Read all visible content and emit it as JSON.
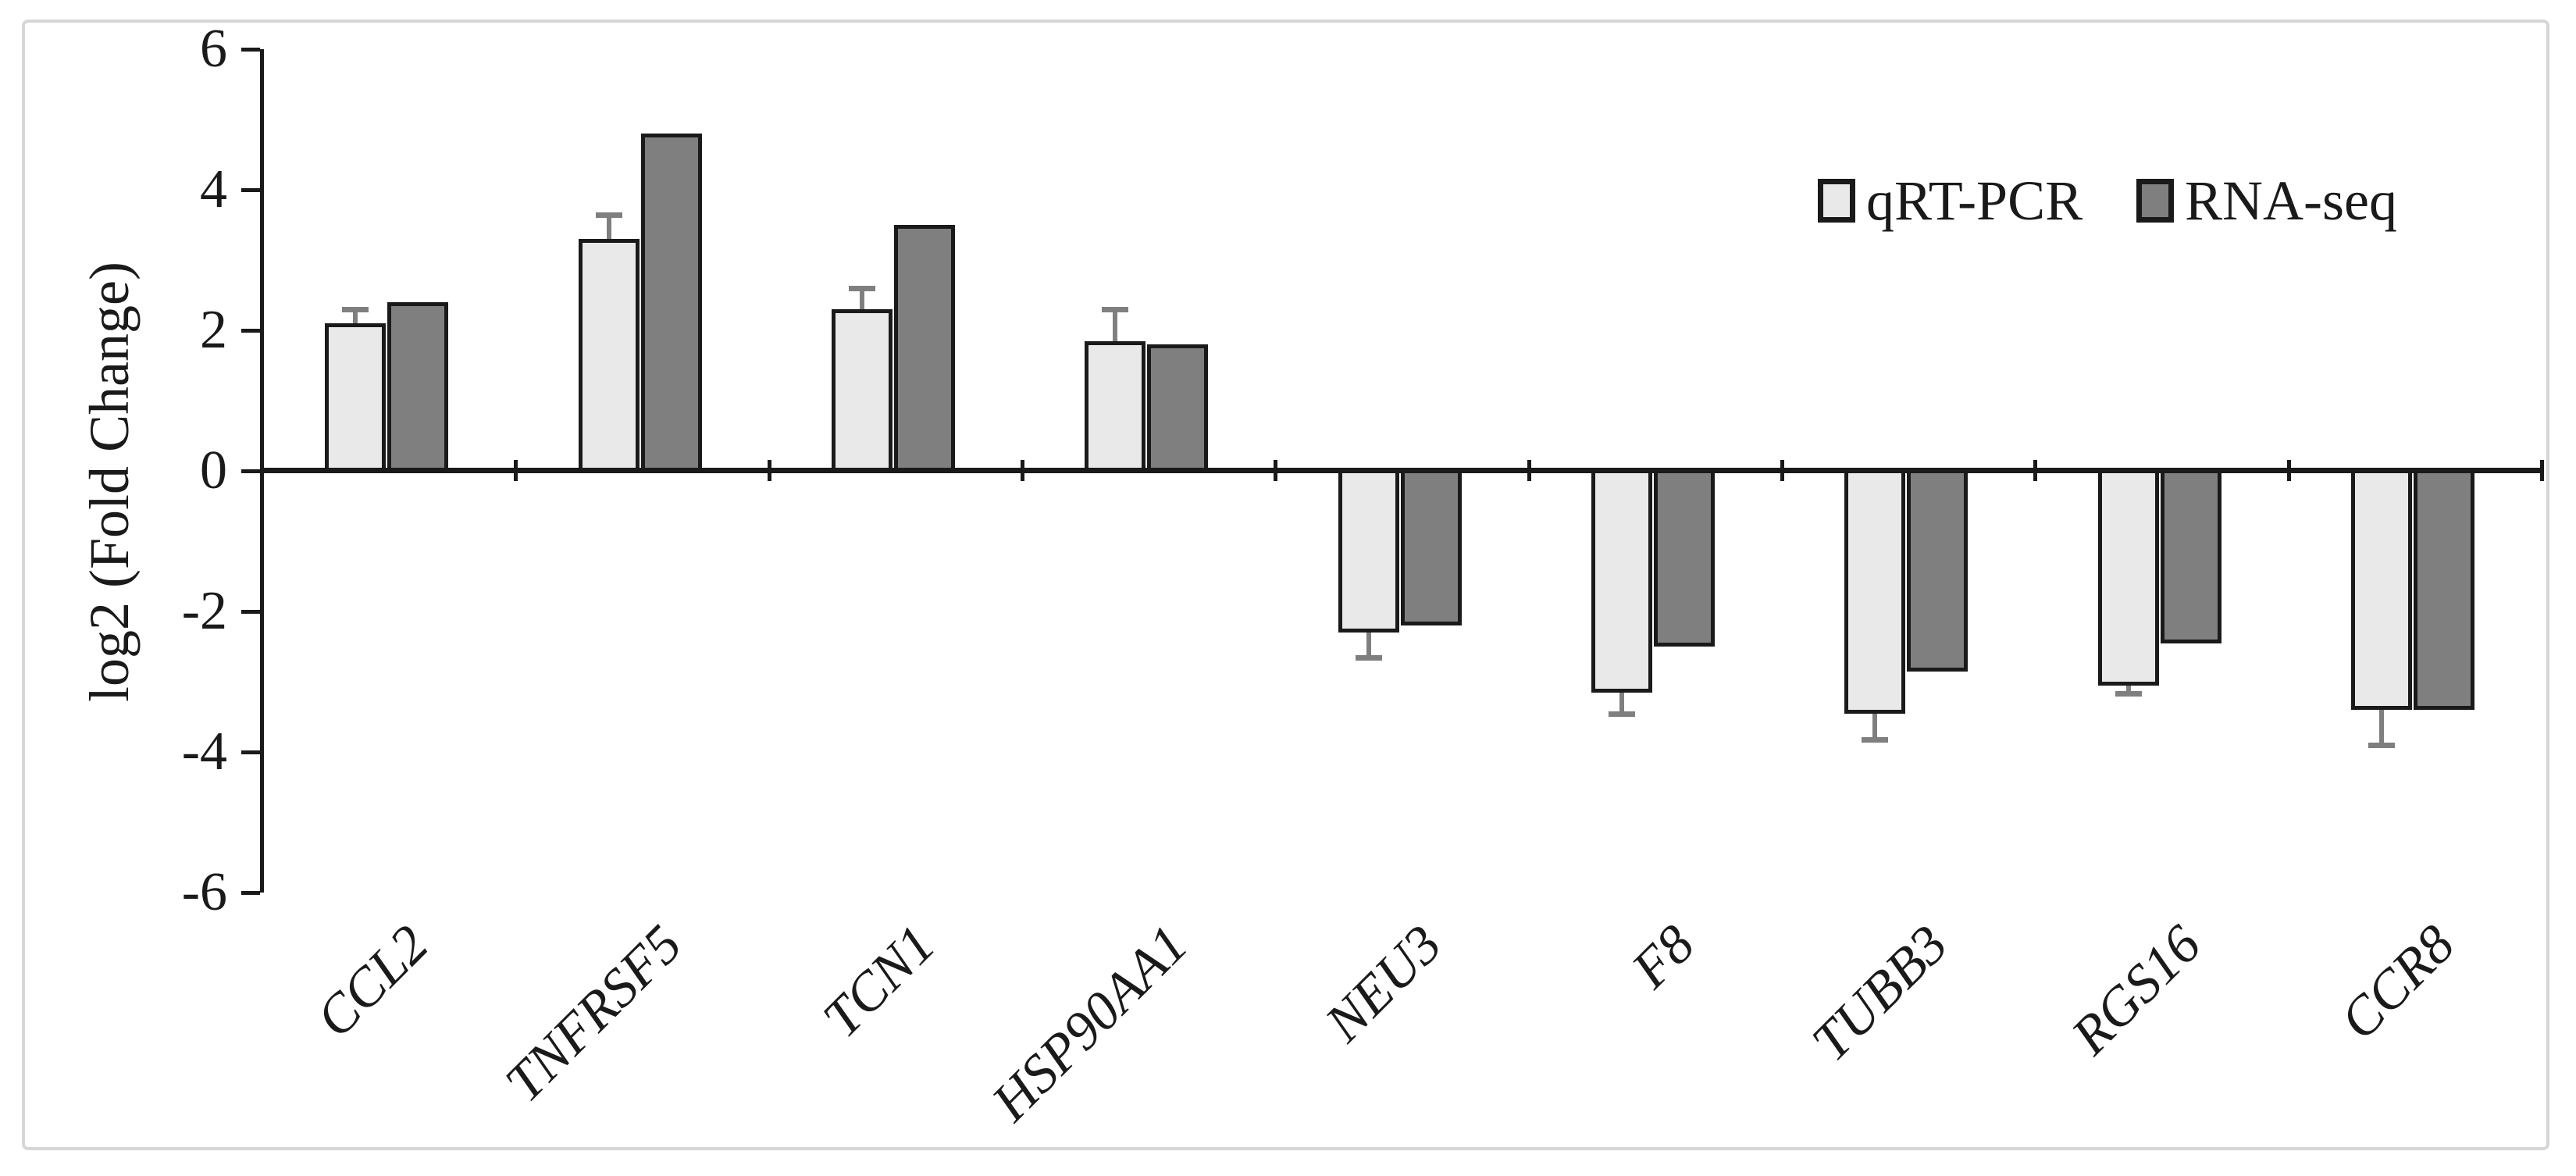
{
  "chart_data": {
    "type": "bar",
    "title": "",
    "ylabel": "log2 (Fold Change)",
    "xlabel": "",
    "categories": [
      "CCL2",
      "TNFRSF5",
      "TCN1",
      "HSP90AA1",
      "NEU3",
      "F8",
      "TUBB3",
      "RGS16",
      "CCR8"
    ],
    "series": [
      {
        "name": "qRT-PCR",
        "color": "#e9e9e9",
        "values": [
          2.1,
          3.3,
          2.3,
          1.85,
          -2.3,
          -3.15,
          -3.45,
          -3.05,
          -3.4
        ],
        "error_bars": [
          0.2,
          0.35,
          0.3,
          0.45,
          0.35,
          0.3,
          0.37,
          0.12,
          0.5
        ]
      },
      {
        "name": "RNA-seq",
        "color": "#7f7f7f",
        "values": [
          2.4,
          4.8,
          3.5,
          1.8,
          -2.2,
          -2.5,
          -2.85,
          -2.45,
          -3.4
        ]
      }
    ],
    "y_ticks": [
      6,
      4,
      2,
      0,
      -2,
      -4,
      -6
    ],
    "ylim": [
      -6,
      6
    ],
    "grid": false,
    "legend_position": "top-right",
    "bar_border_color": "#1a1a1a",
    "error_bar_color": "#7f7f7f",
    "axis_color": "#1a1a1a",
    "frame_color": "#d6d6d6"
  }
}
